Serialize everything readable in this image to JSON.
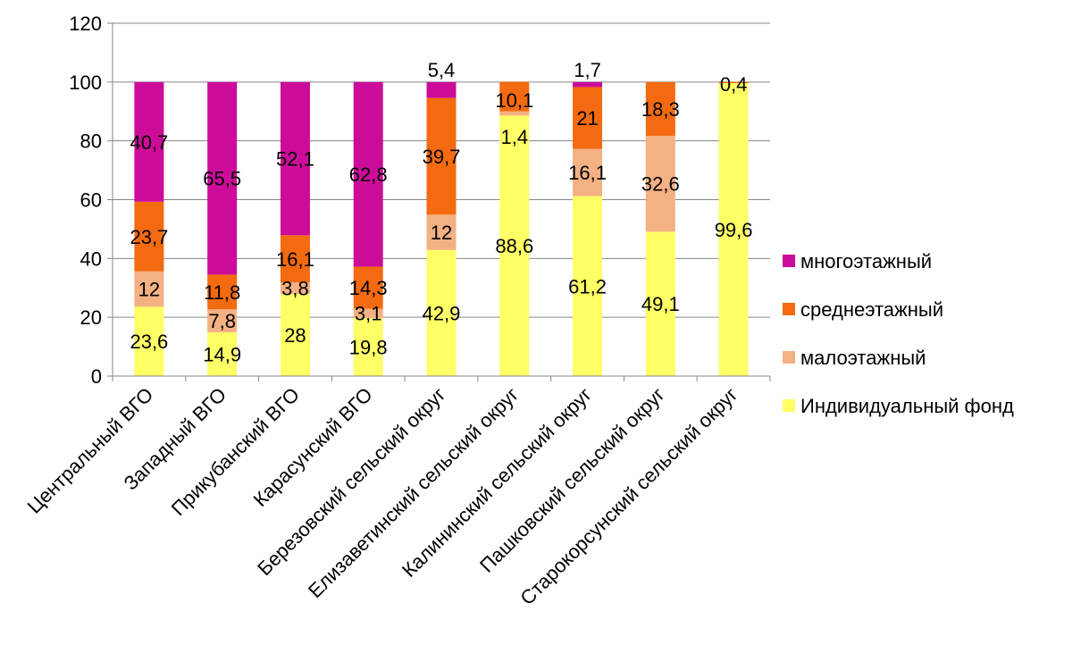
{
  "chart_data": {
    "type": "bar",
    "stacked": true,
    "title": "",
    "xlabel": "",
    "ylabel": "",
    "ylim": [
      0,
      120
    ],
    "yticks": [
      0,
      20,
      40,
      60,
      80,
      100,
      120
    ],
    "grid": true,
    "legend_position": "right",
    "categories": [
      "Центральный ВГО",
      "Западный ВГО",
      "Прикубанский ВГО",
      "Карасунский ВГО",
      "Березовский сельский округ",
      "Елизаветинский сельский округ",
      "Калининский сельский округ",
      "Пашковский сельский округ",
      "Старокорсунский сельский округ"
    ],
    "series": [
      {
        "name": "Индивидуальный фонд",
        "color": "#ffff66",
        "values": [
          23.6,
          14.9,
          28,
          19.8,
          42.9,
          88.6,
          61.2,
          49.1,
          99.6
        ],
        "labels": [
          "23,6",
          "14,9",
          "28",
          "19,8",
          "42,9",
          "88,6",
          "61,2",
          "49,1",
          "99,6"
        ]
      },
      {
        "name": "малоэтажный",
        "color": "#f4b183",
        "values": [
          12,
          7.8,
          3.8,
          3.1,
          12,
          1.4,
          16.1,
          32.6,
          0
        ],
        "labels": [
          "12",
          "7,8",
          "3,8",
          "3,1",
          "12",
          "1,4",
          "16,1",
          "32,6",
          ""
        ]
      },
      {
        "name": "среднеэтажный",
        "color": "#f36a10",
        "values": [
          23.7,
          11.8,
          16.1,
          14.3,
          39.7,
          10.1,
          21,
          18.3,
          0.4
        ],
        "labels": [
          "23,7",
          "11,8",
          "16,1",
          "14,3",
          "39,7",
          "10,1",
          "21",
          "18,3",
          "0,4"
        ]
      },
      {
        "name": "многоэтажный",
        "color": "#cc0c99",
        "values": [
          40.7,
          65.5,
          52.1,
          62.8,
          5.4,
          0,
          1.7,
          0,
          0
        ],
        "labels": [
          "40,7",
          "65,5",
          "52,1",
          "62,8",
          "5,4",
          "",
          "1,7",
          "",
          ""
        ]
      }
    ],
    "legend_order": [
      "многоэтажный",
      "среднеэтажный",
      "малоэтажный",
      "Индивидуальный фонд"
    ]
  }
}
